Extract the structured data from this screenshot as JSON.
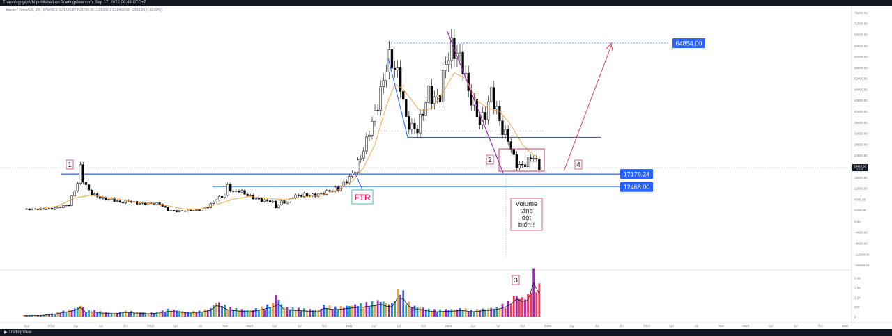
{
  "header": {
    "publisher_line": "ThanhNguyenVN published on TradingView.com, Sep 17, 2022 00:49 UTC+7",
    "symbol_line": "Bitcoin / TetherUS, 1W, BINANCE  O21826.87  H22799.00  L19320.01  C19468.58  −2358.29 (−10.80%)"
  },
  "footer": {
    "logo_text": "TradingView"
  },
  "colors": {
    "background": "#ffffff",
    "up_candle": "#ffffff",
    "down_candle": "#000000",
    "ma_line": "#f7a035",
    "level_line": "#2962ff",
    "arrow_down": "#9c27b0",
    "arrow_up": "#e0405a",
    "box": "#d6386b",
    "ftr": "#e0195c",
    "level_tag": "#2962ff"
  },
  "chart_data": {
    "type": "candlestick",
    "symbol": "BTCUSDT",
    "timeframe": "1W",
    "ohlc_last": {
      "open": 21826.87,
      "high": 22799.0,
      "low": 19320.01,
      "close": 19468.58,
      "change": -2358.29,
      "change_pct": -10.8
    },
    "price_axis": {
      "ticks": [
        "76000.00",
        "72000.00",
        "68000.00",
        "64000.00",
        "60000.00",
        "56000.00",
        "52000.00",
        "48000.00",
        "44000.00",
        "40000.00",
        "36000.00",
        "32000.00",
        "28000.00",
        "24000.00",
        "20000.00",
        "16000.00",
        "12000.00",
        "8000.00",
        "4000.00",
        "0.00",
        "−4000.00",
        "−8000.00",
        "−12000.00",
        "−16000.00"
      ],
      "range": [
        -17000,
        77000
      ],
      "current_price_label": "19468.58",
      "current_price_sub": "13:16"
    },
    "time_axis": {
      "ticks": [
        "Sep",
        "2018",
        "Apr",
        "Jul",
        "Oct",
        "2019",
        "Apr",
        "Jul",
        "Oct",
        "2020",
        "Apr",
        "Jul",
        "Oct",
        "2021",
        "Apr",
        "Jul",
        "Oct",
        "2022",
        "Apr",
        "Jul",
        "Oct",
        "2023",
        "Apr",
        "Jul",
        "Oct",
        "2024",
        "Apr",
        "Jul",
        "Oct",
        "2025",
        "Apr",
        "Jul",
        "Oct",
        "2026"
      ]
    },
    "price_path": [
      [
        0,
        4300
      ],
      [
        10,
        4500
      ],
      [
        16,
        6000
      ],
      [
        19,
        14000
      ],
      [
        20,
        19500
      ],
      [
        21,
        15000
      ],
      [
        23,
        11000
      ],
      [
        25,
        9500
      ],
      [
        28,
        8200
      ],
      [
        31,
        8000
      ],
      [
        34,
        6800
      ],
      [
        37,
        7400
      ],
      [
        40,
        6500
      ],
      [
        44,
        6400
      ],
      [
        48,
        6300
      ],
      [
        51,
        4000
      ],
      [
        54,
        3600
      ],
      [
        58,
        3800
      ],
      [
        62,
        4000
      ],
      [
        65,
        5200
      ],
      [
        68,
        8000
      ],
      [
        71,
        9500
      ],
      [
        72,
        12800
      ],
      [
        74,
        10500
      ],
      [
        76,
        11200
      ],
      [
        78,
        10000
      ],
      [
        81,
        8500
      ],
      [
        84,
        7600
      ],
      [
        87,
        7300
      ],
      [
        88,
        6900
      ],
      [
        89,
        5000
      ],
      [
        91,
        7000
      ],
      [
        93,
        6800
      ],
      [
        95,
        9000
      ],
      [
        97,
        9300
      ],
      [
        99,
        9600
      ],
      [
        101,
        9300
      ],
      [
        104,
        9700
      ],
      [
        106,
        10300
      ],
      [
        108,
        11000
      ],
      [
        110,
        11700
      ],
      [
        111,
        11600
      ],
      [
        113,
        13800
      ],
      [
        115,
        15800
      ],
      [
        117,
        18800
      ],
      [
        119,
        23500
      ],
      [
        121,
        29000
      ],
      [
        122,
        33000
      ],
      [
        124,
        39000
      ],
      [
        126,
        47000
      ],
      [
        127,
        51000
      ],
      [
        128,
        57000
      ],
      [
        129,
        59000
      ],
      [
        131,
        56000
      ],
      [
        133,
        50000
      ],
      [
        135,
        37000
      ],
      [
        137,
        34000
      ],
      [
        139,
        33500
      ],
      [
        141,
        40000
      ],
      [
        143,
        47000
      ],
      [
        145,
        44000
      ],
      [
        147,
        46000
      ],
      [
        149,
        58000
      ],
      [
        151,
        63000
      ],
      [
        153,
        61000
      ],
      [
        155,
        57000
      ],
      [
        157,
        47000
      ],
      [
        159,
        42000
      ],
      [
        161,
        36000
      ],
      [
        163,
        39000
      ],
      [
        165,
        47000
      ],
      [
        167,
        40000
      ],
      [
        169,
        33000
      ],
      [
        171,
        30000
      ],
      [
        173,
        23000
      ],
      [
        174,
        20500
      ],
      [
        176,
        20000
      ],
      [
        178,
        22000
      ],
      [
        180,
        23800
      ],
      [
        181,
        21300
      ],
      [
        182,
        19468
      ]
    ],
    "ma_path": [
      [
        5,
        4400
      ],
      [
        12,
        5500
      ],
      [
        18,
        8500
      ],
      [
        24,
        9500
      ],
      [
        32,
        8200
      ],
      [
        40,
        7000
      ],
      [
        50,
        5800
      ],
      [
        56,
        4500
      ],
      [
        62,
        4300
      ],
      [
        68,
        6000
      ],
      [
        74,
        8000
      ],
      [
        80,
        9000
      ],
      [
        86,
        8400
      ],
      [
        92,
        7800
      ],
      [
        98,
        8700
      ],
      [
        104,
        9400
      ],
      [
        110,
        10800
      ],
      [
        116,
        14500
      ],
      [
        120,
        19500
      ],
      [
        124,
        28000
      ],
      [
        128,
        42000
      ],
      [
        131,
        50000
      ],
      [
        134,
        48000
      ],
      [
        137,
        44000
      ],
      [
        140,
        40000
      ],
      [
        144,
        41000
      ],
      [
        148,
        47000
      ],
      [
        152,
        54000
      ],
      [
        156,
        52000
      ],
      [
        160,
        44000
      ],
      [
        164,
        41000
      ],
      [
        168,
        40000
      ],
      [
        172,
        35000
      ],
      [
        176,
        28000
      ],
      [
        180,
        24000
      ],
      [
        182,
        22500
      ]
    ],
    "volume": {
      "peak_bar_index": 180,
      "ticks": [
        "2.4K",
        "1.8K",
        "1.2K",
        "600",
        "0"
      ],
      "range": [
        0,
        2600
      ],
      "bars": [
        [
          0,
          60
        ],
        [
          6,
          80
        ],
        [
          10,
          150
        ],
        [
          14,
          300
        ],
        [
          17,
          400
        ],
        [
          19,
          500
        ],
        [
          20,
          650
        ],
        [
          22,
          300
        ],
        [
          24,
          350
        ],
        [
          28,
          250
        ],
        [
          32,
          200
        ],
        [
          36,
          300
        ],
        [
          40,
          250
        ],
        [
          44,
          200
        ],
        [
          48,
          260
        ],
        [
          51,
          400
        ],
        [
          54,
          350
        ],
        [
          58,
          250
        ],
        [
          62,
          300
        ],
        [
          66,
          450
        ],
        [
          68,
          800
        ],
        [
          70,
          700
        ],
        [
          72,
          500
        ],
        [
          76,
          400
        ],
        [
          80,
          350
        ],
        [
          84,
          500
        ],
        [
          88,
          700
        ],
        [
          89,
          1350
        ],
        [
          90,
          900
        ],
        [
          92,
          500
        ],
        [
          96,
          450
        ],
        [
          100,
          400
        ],
        [
          104,
          350
        ],
        [
          106,
          600
        ],
        [
          110,
          500
        ],
        [
          113,
          550
        ],
        [
          117,
          650
        ],
        [
          120,
          700
        ],
        [
          124,
          800
        ],
        [
          126,
          900
        ],
        [
          128,
          750
        ],
        [
          130,
          700
        ],
        [
          133,
          1700
        ],
        [
          135,
          900
        ],
        [
          137,
          600
        ],
        [
          140,
          500
        ],
        [
          143,
          400
        ],
        [
          146,
          350
        ],
        [
          149,
          380
        ],
        [
          152,
          400
        ],
        [
          155,
          450
        ],
        [
          158,
          350
        ],
        [
          161,
          400
        ],
        [
          164,
          450
        ],
        [
          167,
          500
        ],
        [
          170,
          700
        ],
        [
          172,
          900
        ],
        [
          173,
          1050
        ],
        [
          174,
          1300
        ],
        [
          175,
          950
        ],
        [
          176,
          1100
        ],
        [
          177,
          1000
        ],
        [
          178,
          1200
        ],
        [
          179,
          1550
        ],
        [
          180,
          2450
        ],
        [
          181,
          1800
        ],
        [
          182,
          1650
        ]
      ]
    },
    "annotations": {
      "levels": [
        {
          "price": 64854.0,
          "label": "64854.00"
        },
        {
          "price": 17176.24,
          "label": "17176.24"
        },
        {
          "price": 12468.0,
          "label": "12468.00"
        }
      ],
      "ftr_label": "FTR",
      "wave_labels": [
        "1",
        "2",
        "3",
        "4"
      ],
      "note": "Volume\ntăng\nđột\nbiến!!"
    }
  }
}
